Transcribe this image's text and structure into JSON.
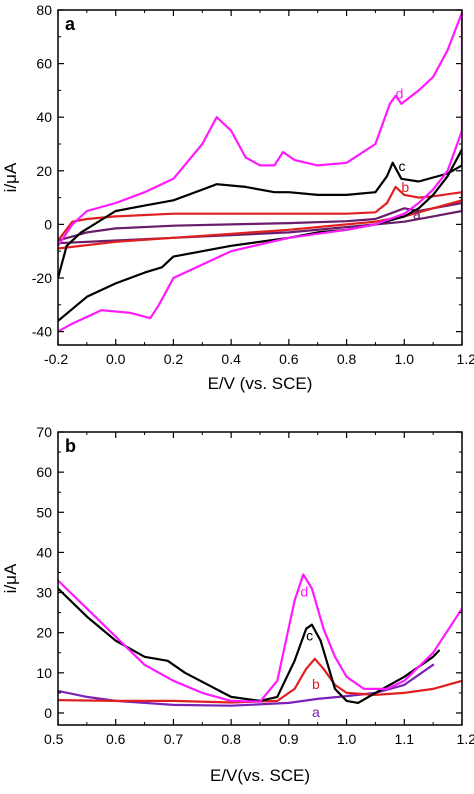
{
  "chart_data": [
    {
      "type": "line",
      "panel_label": "a",
      "xlabel": "E/V (vs. SCE)",
      "ylabel": "i/μA",
      "xlim": [
        -0.2,
        1.2
      ],
      "ylim": [
        -45,
        80
      ],
      "xticks": [
        "-0.2",
        "0.0",
        "0.2",
        "0.4",
        "0.6",
        "0.8",
        "1.0",
        "1.2"
      ],
      "yticks": [
        "-40",
        "-20",
        "0",
        "20",
        "40",
        "60",
        "80"
      ],
      "grid": false,
      "series": [
        {
          "name": "a",
          "color": "#6a1d6a",
          "points": [
            [
              -0.2,
              -6
            ],
            [
              -0.1,
              -3
            ],
            [
              0.0,
              -1.5
            ],
            [
              0.2,
              -0.5
            ],
            [
              0.4,
              0
            ],
            [
              0.6,
              0.5
            ],
            [
              0.8,
              1.2
            ],
            [
              0.9,
              2
            ],
            [
              0.95,
              4
            ],
            [
              1.0,
              6
            ],
            [
              1.05,
              5
            ],
            [
              1.1,
              6
            ],
            [
              1.2,
              8
            ],
            [
              1.2,
              5
            ],
            [
              1.1,
              3
            ],
            [
              1.0,
              1
            ],
            [
              0.8,
              -1
            ],
            [
              0.6,
              -3
            ],
            [
              0.4,
              -4
            ],
            [
              0.2,
              -5
            ],
            [
              0.0,
              -6
            ],
            [
              -0.2,
              -7
            ]
          ],
          "label_at": [
            1.03,
            2
          ]
        },
        {
          "name": "b",
          "color": "#e02020",
          "points": [
            [
              -0.2,
              -6
            ],
            [
              -0.15,
              1
            ],
            [
              -0.1,
              2
            ],
            [
              0.0,
              3
            ],
            [
              0.2,
              4
            ],
            [
              0.4,
              4
            ],
            [
              0.6,
              4
            ],
            [
              0.8,
              4
            ],
            [
              0.9,
              4.5
            ],
            [
              0.94,
              8
            ],
            [
              0.97,
              14
            ],
            [
              1.0,
              11
            ],
            [
              1.05,
              10
            ],
            [
              1.1,
              10.5
            ],
            [
              1.2,
              12
            ],
            [
              1.2,
              9
            ],
            [
              1.1,
              6
            ],
            [
              1.0,
              3
            ],
            [
              0.9,
              1
            ],
            [
              0.8,
              0
            ],
            [
              0.6,
              -2
            ],
            [
              0.4,
              -3.5
            ],
            [
              0.2,
              -5
            ],
            [
              0.0,
              -6.5
            ],
            [
              -0.2,
              -9
            ]
          ],
          "label_at": [
            0.99,
            12
          ]
        },
        {
          "name": "c",
          "color": "#000000",
          "points": [
            [
              -0.2,
              -20
            ],
            [
              -0.17,
              -8
            ],
            [
              -0.12,
              -3
            ],
            [
              0.0,
              5
            ],
            [
              0.1,
              7
            ],
            [
              0.2,
              9
            ],
            [
              0.3,
              13
            ],
            [
              0.35,
              15
            ],
            [
              0.45,
              14
            ],
            [
              0.55,
              12
            ],
            [
              0.6,
              12
            ],
            [
              0.7,
              11
            ],
            [
              0.8,
              11
            ],
            [
              0.9,
              12
            ],
            [
              0.94,
              18
            ],
            [
              0.96,
              23
            ],
            [
              0.99,
              17
            ],
            [
              1.05,
              16
            ],
            [
              1.15,
              19
            ],
            [
              1.2,
              22
            ],
            [
              1.2,
              28
            ],
            [
              1.15,
              18
            ],
            [
              1.1,
              11
            ],
            [
              1.05,
              6
            ],
            [
              1.0,
              3
            ],
            [
              0.9,
              0
            ],
            [
              0.8,
              -2
            ],
            [
              0.7,
              -3
            ],
            [
              0.6,
              -5
            ],
            [
              0.4,
              -8
            ],
            [
              0.2,
              -12
            ],
            [
              0.16,
              -16
            ],
            [
              0.1,
              -18
            ],
            [
              0.0,
              -22
            ],
            [
              -0.1,
              -27
            ],
            [
              -0.2,
              -36
            ]
          ],
          "label_at": [
            0.98,
            20
          ]
        },
        {
          "name": "d",
          "color": "#ff1aff",
          "points": [
            [
              -0.2,
              -8
            ],
            [
              -0.15,
              0
            ],
            [
              -0.1,
              5
            ],
            [
              0.0,
              8
            ],
            [
              0.1,
              12
            ],
            [
              0.2,
              17
            ],
            [
              0.3,
              30
            ],
            [
              0.35,
              40
            ],
            [
              0.4,
              35
            ],
            [
              0.45,
              25
            ],
            [
              0.5,
              22
            ],
            [
              0.55,
              22
            ],
            [
              0.58,
              27
            ],
            [
              0.62,
              24
            ],
            [
              0.7,
              22
            ],
            [
              0.8,
              23
            ],
            [
              0.9,
              30
            ],
            [
              0.95,
              45
            ],
            [
              0.97,
              48
            ],
            [
              0.99,
              45
            ],
            [
              1.05,
              50
            ],
            [
              1.1,
              55
            ],
            [
              1.15,
              65
            ],
            [
              1.2,
              79
            ],
            [
              1.2,
              35
            ],
            [
              1.15,
              20
            ],
            [
              1.1,
              13
            ],
            [
              1.05,
              8
            ],
            [
              1.0,
              4
            ],
            [
              0.9,
              0
            ],
            [
              0.8,
              -2
            ],
            [
              0.6,
              -5
            ],
            [
              0.4,
              -10
            ],
            [
              0.2,
              -20
            ],
            [
              0.15,
              -30
            ],
            [
              0.12,
              -35
            ],
            [
              0.05,
              -33
            ],
            [
              -0.05,
              -32
            ],
            [
              -0.15,
              -37
            ],
            [
              -0.2,
              -40
            ]
          ],
          "label_at": [
            0.97,
            47
          ]
        }
      ]
    },
    {
      "type": "line",
      "panel_label": "b",
      "xlabel": "E/V(vs. SCE)",
      "ylabel": "i/μA",
      "xlim": [
        0.5,
        1.2
      ],
      "ylim": [
        -3,
        70
      ],
      "xticks": [
        "0.5",
        "0.6",
        "0.7",
        "0.8",
        "0.9",
        "1.0",
        "1.1",
        "1.2"
      ],
      "yticks": [
        "0",
        "10",
        "20",
        "30",
        "40",
        "50",
        "60",
        "70"
      ],
      "grid": false,
      "series": [
        {
          "name": "a",
          "color": "#7a22b8",
          "points": [
            [
              0.5,
              5.5
            ],
            [
              0.55,
              4
            ],
            [
              0.6,
              3
            ],
            [
              0.7,
              2
            ],
            [
              0.8,
              1.8
            ],
            [
              0.9,
              2.5
            ],
            [
              0.95,
              3.5
            ],
            [
              1.0,
              4.2
            ],
            [
              1.05,
              5
            ],
            [
              1.1,
              7
            ],
            [
              1.15,
              12
            ]
          ],
          "label_at": [
            0.94,
            -1
          ]
        },
        {
          "name": "b",
          "color": "#e02020",
          "points": [
            [
              0.5,
              3.2
            ],
            [
              0.6,
              3
            ],
            [
              0.7,
              3
            ],
            [
              0.8,
              2.6
            ],
            [
              0.88,
              3
            ],
            [
              0.91,
              6
            ],
            [
              0.93,
              11
            ],
            [
              0.945,
              13.5
            ],
            [
              0.96,
              11
            ],
            [
              0.98,
              7
            ],
            [
              1.0,
              5
            ],
            [
              1.05,
              4.5
            ],
            [
              1.1,
              5
            ],
            [
              1.15,
              6
            ],
            [
              1.2,
              8
            ]
          ],
          "label_at": [
            0.94,
            6
          ]
        },
        {
          "name": "c",
          "color": "#000000",
          "points": [
            [
              0.5,
              31
            ],
            [
              0.55,
              24
            ],
            [
              0.6,
              18
            ],
            [
              0.65,
              14
            ],
            [
              0.67,
              13.5
            ],
            [
              0.69,
              13
            ],
            [
              0.72,
              10
            ],
            [
              0.8,
              4
            ],
            [
              0.85,
              3
            ],
            [
              0.88,
              4
            ],
            [
              0.91,
              13
            ],
            [
              0.93,
              21
            ],
            [
              0.94,
              22
            ],
            [
              0.955,
              18
            ],
            [
              0.98,
              6
            ],
            [
              1.0,
              3
            ],
            [
              1.02,
              2.5
            ],
            [
              1.05,
              5
            ],
            [
              1.1,
              9
            ],
            [
              1.15,
              14
            ],
            [
              1.16,
              15.5
            ]
          ],
          "label_at": [
            0.93,
            18
          ]
        },
        {
          "name": "d",
          "color": "#ff1aff",
          "points": [
            [
              0.5,
              33
            ],
            [
              0.55,
              26
            ],
            [
              0.6,
              19
            ],
            [
              0.65,
              12
            ],
            [
              0.7,
              8
            ],
            [
              0.75,
              5
            ],
            [
              0.8,
              3
            ],
            [
              0.85,
              2.8
            ],
            [
              0.88,
              8
            ],
            [
              0.91,
              28
            ],
            [
              0.925,
              34.5
            ],
            [
              0.94,
              31
            ],
            [
              0.96,
              21
            ],
            [
              0.98,
              14
            ],
            [
              1.0,
              9
            ],
            [
              1.03,
              6
            ],
            [
              1.07,
              6
            ],
            [
              1.1,
              8
            ],
            [
              1.15,
              15
            ],
            [
              1.2,
              26
            ]
          ],
          "label_at": [
            0.92,
            29
          ]
        }
      ]
    }
  ]
}
